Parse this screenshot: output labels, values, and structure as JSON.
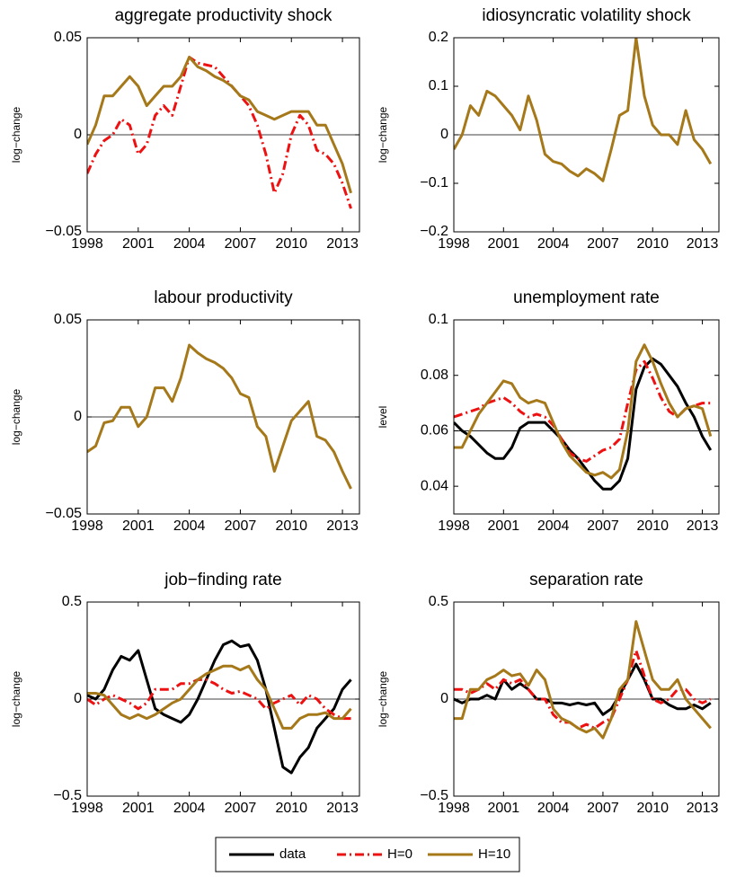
{
  "chart_data": [
    {
      "type": "line",
      "title": "aggregate productivity shock",
      "ylabel": "log−change",
      "x": [
        1998,
        1998.5,
        1999,
        1999.5,
        2000,
        2000.5,
        2001,
        2001.5,
        2002,
        2002.5,
        2003,
        2003.5,
        2004,
        2004.5,
        2005,
        2005.5,
        2006,
        2006.5,
        2007,
        2007.5,
        2008,
        2008.5,
        2009,
        2009.5,
        2010,
        2010.5,
        2011,
        2011.5,
        2012,
        2012.5,
        2013,
        2013.5
      ],
      "xlim": [
        1998,
        2014
      ],
      "xticks": [
        1998,
        2001,
        2004,
        2007,
        2010,
        2013
      ],
      "ylim": [
        -0.05,
        0.05
      ],
      "yticks": [
        {
          "value": -0.05,
          "label": "−0.05"
        },
        0,
        0.05
      ],
      "reference_line": 0,
      "series": [
        {
          "name": "H=0",
          "color": "#ee1111",
          "dash": "dashdot",
          "values": [
            -0.02,
            -0.01,
            -0.003,
            0,
            0.008,
            0.005,
            -0.01,
            -0.005,
            0.01,
            0.015,
            0.01,
            0.025,
            0.04,
            0.037,
            0.036,
            0.035,
            0.03,
            0.025,
            0.02,
            0.015,
            0.005,
            -0.01,
            -0.03,
            -0.02,
            0,
            0.01,
            0.005,
            -0.008,
            -0.01,
            -0.015,
            -0.025,
            -0.038
          ]
        },
        {
          "name": "H=10",
          "color": "#a5781a",
          "dash": "solid",
          "values": [
            -0.005,
            0.005,
            0.02,
            0.02,
            0.025,
            0.03,
            0.025,
            0.015,
            0.02,
            0.025,
            0.025,
            0.03,
            0.04,
            0.035,
            0.033,
            0.03,
            0.028,
            0.025,
            0.02,
            0.018,
            0.012,
            0.01,
            0.008,
            0.01,
            0.012,
            0.012,
            0.012,
            0.005,
            0.005,
            -0.005,
            -0.015,
            -0.03
          ]
        }
      ]
    },
    {
      "type": "line",
      "title": "idiosyncratic volatility shock",
      "ylabel": "log−change",
      "x": [
        1998,
        1998.5,
        1999,
        1999.5,
        2000,
        2000.5,
        2001,
        2001.5,
        2002,
        2002.5,
        2003,
        2003.5,
        2004,
        2004.5,
        2005,
        2005.5,
        2006,
        2006.5,
        2007,
        2007.5,
        2008,
        2008.5,
        2009,
        2009.5,
        2010,
        2010.5,
        2011,
        2011.5,
        2012,
        2012.5,
        2013,
        2013.5
      ],
      "xlim": [
        1998,
        2014
      ],
      "xticks": [
        1998,
        2001,
        2004,
        2007,
        2010,
        2013
      ],
      "ylim": [
        -0.2,
        0.2
      ],
      "yticks": [
        {
          "value": -0.2,
          "label": "−0.2"
        },
        {
          "value": -0.1,
          "label": "−0.1"
        },
        0,
        0.1,
        0.2
      ],
      "reference_line": 0,
      "series": [
        {
          "name": "H=10",
          "color": "#a5781a",
          "dash": "solid",
          "values": [
            -0.03,
            0,
            0.06,
            0.04,
            0.09,
            0.08,
            0.06,
            0.04,
            0.01,
            0.08,
            0.03,
            -0.04,
            -0.055,
            -0.06,
            -0.075,
            -0.085,
            -0.07,
            -0.08,
            -0.095,
            -0.03,
            0.04,
            0.05,
            0.2,
            0.08,
            0.02,
            0,
            0,
            -0.02,
            0.05,
            -0.01,
            -0.03,
            -0.06
          ]
        }
      ]
    },
    {
      "type": "line",
      "title": "labour productivity",
      "ylabel": "log−change",
      "x": [
        1998,
        1998.5,
        1999,
        1999.5,
        2000,
        2000.5,
        2001,
        2001.5,
        2002,
        2002.5,
        2003,
        2003.5,
        2004,
        2004.5,
        2005,
        2005.5,
        2006,
        2006.5,
        2007,
        2007.5,
        2008,
        2008.5,
        2009,
        2009.5,
        2010,
        2010.5,
        2011,
        2011.5,
        2012,
        2012.5,
        2013,
        2013.5
      ],
      "xlim": [
        1998,
        2014
      ],
      "xticks": [
        1998,
        2001,
        2004,
        2007,
        2010,
        2013
      ],
      "ylim": [
        -0.05,
        0.05
      ],
      "yticks": [
        {
          "value": -0.05,
          "label": "−0.05"
        },
        0,
        0.05
      ],
      "reference_line": 0,
      "series": [
        {
          "name": "H=10",
          "color": "#a5781a",
          "dash": "solid",
          "values": [
            -0.018,
            -0.015,
            -0.003,
            -0.002,
            0.005,
            0.005,
            -0.005,
            0,
            0.015,
            0.015,
            0.008,
            0.02,
            0.037,
            0.033,
            0.03,
            0.028,
            0.025,
            0.02,
            0.012,
            0.01,
            -0.005,
            -0.01,
            -0.028,
            -0.015,
            -0.002,
            0.003,
            0.008,
            -0.01,
            -0.012,
            -0.018,
            -0.028,
            -0.037
          ]
        }
      ]
    },
    {
      "type": "line",
      "title": "unemployment rate",
      "ylabel": "level",
      "x": [
        1998,
        1998.5,
        1999,
        1999.5,
        2000,
        2000.5,
        2001,
        2001.5,
        2002,
        2002.5,
        2003,
        2003.5,
        2004,
        2004.5,
        2005,
        2005.5,
        2006,
        2006.5,
        2007,
        2007.5,
        2008,
        2008.5,
        2009,
        2009.5,
        2010,
        2010.5,
        2011,
        2011.5,
        2012,
        2012.5,
        2013,
        2013.5
      ],
      "xlim": [
        1998,
        2014
      ],
      "xticks": [
        1998,
        2001,
        2004,
        2007,
        2010,
        2013
      ],
      "ylim": [
        0.03,
        0.1
      ],
      "yticks": [
        0.04,
        0.06,
        0.08,
        0.1
      ],
      "reference_line": 0.06,
      "series": [
        {
          "name": "data",
          "color": "#000000",
          "dash": "solid",
          "values": [
            0.063,
            0.06,
            0.058,
            0.055,
            0.052,
            0.05,
            0.05,
            0.054,
            0.061,
            0.063,
            0.063,
            0.063,
            0.06,
            0.057,
            0.053,
            0.05,
            0.046,
            0.042,
            0.039,
            0.039,
            0.042,
            0.05,
            0.075,
            0.083,
            0.086,
            0.084,
            0.08,
            0.076,
            0.07,
            0.065,
            0.058,
            0.053
          ]
        },
        {
          "name": "H=0",
          "color": "#ee1111",
          "dash": "dashdot",
          "values": [
            0.065,
            0.066,
            0.067,
            0.068,
            0.07,
            0.071,
            0.072,
            0.07,
            0.067,
            0.065,
            0.066,
            0.065,
            0.062,
            0.057,
            0.052,
            0.05,
            0.049,
            0.051,
            0.053,
            0.054,
            0.057,
            0.07,
            0.082,
            0.085,
            0.079,
            0.072,
            0.067,
            0.065,
            0.068,
            0.069,
            0.07,
            0.07
          ]
        },
        {
          "name": "H=10",
          "color": "#a5781a",
          "dash": "solid",
          "values": [
            0.054,
            0.054,
            0.06,
            0.066,
            0.07,
            0.074,
            0.078,
            0.077,
            0.072,
            0.07,
            0.071,
            0.07,
            0.063,
            0.056,
            0.051,
            0.048,
            0.045,
            0.044,
            0.045,
            0.043,
            0.046,
            0.06,
            0.085,
            0.091,
            0.085,
            0.077,
            0.07,
            0.065,
            0.068,
            0.069,
            0.068,
            0.058
          ]
        }
      ]
    },
    {
      "type": "line",
      "title": "job−finding rate",
      "ylabel": "log−change",
      "x": [
        1998,
        1998.5,
        1999,
        1999.5,
        2000,
        2000.5,
        2001,
        2001.5,
        2002,
        2002.5,
        2003,
        2003.5,
        2004,
        2004.5,
        2005,
        2005.5,
        2006,
        2006.5,
        2007,
        2007.5,
        2008,
        2008.5,
        2009,
        2009.5,
        2010,
        2010.5,
        2011,
        2011.5,
        2012,
        2012.5,
        2013,
        2013.5
      ],
      "xlim": [
        1998,
        2014
      ],
      "xticks": [
        1998,
        2001,
        2004,
        2007,
        2010,
        2013
      ],
      "ylim": [
        -0.5,
        0.5
      ],
      "yticks": [
        {
          "value": -0.5,
          "label": "−0.5"
        },
        0,
        0.5
      ],
      "reference_line": 0,
      "series": [
        {
          "name": "data",
          "color": "#000000",
          "dash": "solid",
          "values": [
            0.02,
            0,
            0.05,
            0.15,
            0.22,
            0.2,
            0.25,
            0.1,
            -0.05,
            -0.08,
            -0.1,
            -0.12,
            -0.08,
            0,
            0.1,
            0.2,
            0.28,
            0.3,
            0.27,
            0.28,
            0.2,
            0.05,
            -0.15,
            -0.35,
            -0.38,
            -0.3,
            -0.25,
            -0.15,
            -0.1,
            -0.05,
            0.05,
            0.1
          ]
        },
        {
          "name": "H=0",
          "color": "#ee1111",
          "dash": "dashdot",
          "values": [
            0,
            -0.03,
            0,
            0.02,
            0,
            -0.02,
            -0.05,
            -0.02,
            0.05,
            0.05,
            0.05,
            0.08,
            0.08,
            0.1,
            0.1,
            0.08,
            0.05,
            0.03,
            0.04,
            0.02,
            0,
            -0.05,
            -0.02,
            0,
            0.02,
            -0.03,
            0.02,
            0,
            -0.05,
            -0.08,
            -0.1,
            -0.1
          ]
        },
        {
          "name": "H=10",
          "color": "#a5781a",
          "dash": "solid",
          "values": [
            0.03,
            0.03,
            0.02,
            -0.03,
            -0.08,
            -0.1,
            -0.08,
            -0.1,
            -0.08,
            -0.05,
            -0.02,
            0,
            0.05,
            0.1,
            0.13,
            0.15,
            0.17,
            0.17,
            0.15,
            0.17,
            0.1,
            0.05,
            -0.05,
            -0.15,
            -0.15,
            -0.1,
            -0.08,
            -0.08,
            -0.07,
            -0.1,
            -0.1,
            -0.05
          ]
        }
      ]
    },
    {
      "type": "line",
      "title": "separation rate",
      "ylabel": "log−change",
      "x": [
        1998,
        1998.5,
        1999,
        1999.5,
        2000,
        2000.5,
        2001,
        2001.5,
        2002,
        2002.5,
        2003,
        2003.5,
        2004,
        2004.5,
        2005,
        2005.5,
        2006,
        2006.5,
        2007,
        2007.5,
        2008,
        2008.5,
        2009,
        2009.5,
        2010,
        2010.5,
        2011,
        2011.5,
        2012,
        2012.5,
        2013,
        2013.5
      ],
      "xlim": [
        1998,
        2014
      ],
      "xticks": [
        1998,
        2001,
        2004,
        2007,
        2010,
        2013
      ],
      "ylim": [
        -0.5,
        0.5
      ],
      "yticks": [
        {
          "value": -0.5,
          "label": "−0.5"
        },
        0,
        0.5
      ],
      "reference_line": 0,
      "series": [
        {
          "name": "data",
          "color": "#000000",
          "dash": "solid",
          "values": [
            0,
            -0.02,
            0,
            0,
            0.02,
            0,
            0.1,
            0.05,
            0.08,
            0.05,
            0,
            0,
            -0.02,
            -0.02,
            -0.03,
            -0.02,
            -0.03,
            -0.02,
            -0.08,
            -0.05,
            0.02,
            0.1,
            0.18,
            0.1,
            0,
            0,
            -0.03,
            -0.05,
            -0.05,
            -0.03,
            -0.05,
            -0.02
          ]
        },
        {
          "name": "H=0",
          "color": "#ee1111",
          "dash": "dashdot",
          "values": [
            0.05,
            0.05,
            0.03,
            0.05,
            0.08,
            0.05,
            0.1,
            0.08,
            0.1,
            0.05,
            0,
            0,
            -0.08,
            -0.12,
            -0.12,
            -0.15,
            -0.13,
            -0.15,
            -0.12,
            -0.1,
            0,
            0.1,
            0.25,
            0.12,
            0,
            -0.02,
            0,
            0.05,
            0.05,
            0,
            -0.02,
            0
          ]
        },
        {
          "name": "H=10",
          "color": "#a5781a",
          "dash": "solid",
          "values": [
            -0.1,
            -0.1,
            0.05,
            0.05,
            0.1,
            0.12,
            0.15,
            0.12,
            0.13,
            0.07,
            0.15,
            0.1,
            -0.05,
            -0.1,
            -0.12,
            -0.15,
            -0.17,
            -0.15,
            -0.2,
            -0.1,
            0.05,
            0.1,
            0.4,
            0.25,
            0.1,
            0.05,
            0.05,
            0.1,
            0,
            -0.05,
            -0.1,
            -0.15
          ]
        }
      ]
    }
  ]
}
